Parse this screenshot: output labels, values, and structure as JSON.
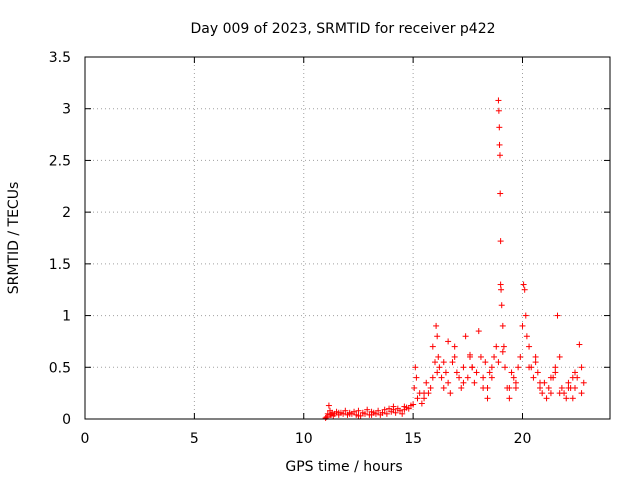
{
  "chart_data": {
    "type": "scatter",
    "title": "Day 009 of 2023, SRMTID for receiver p422",
    "xlabel": "GPS time / hours",
    "ylabel": "SRMTID / TECUs",
    "xlim": [
      0,
      24
    ],
    "ylim": [
      0,
      3.5
    ],
    "xticks": [
      "0",
      "5",
      "10",
      "15",
      "20"
    ],
    "yticks": [
      "0",
      "0.5",
      "1",
      "1.5",
      "2",
      "2.5",
      "3",
      "3.5"
    ],
    "grid": true,
    "marker": "+",
    "color": "#ff0000",
    "series": [
      {
        "name": "SRMTID",
        "x": [
          11.0,
          11.05,
          11.1,
          11.15,
          11.2,
          11.25,
          11.3,
          11.35,
          11.4,
          11.5,
          11.6,
          11.7,
          11.8,
          11.9,
          12.0,
          12.1,
          12.2,
          12.3,
          12.4,
          12.5,
          12.6,
          12.7,
          12.8,
          12.9,
          13.0,
          13.1,
          13.2,
          13.3,
          13.4,
          13.5,
          13.6,
          13.7,
          13.8,
          13.9,
          14.0,
          14.1,
          14.2,
          14.3,
          14.4,
          14.5,
          14.6,
          14.7,
          14.8,
          14.9,
          15.0,
          15.05,
          15.1,
          15.15,
          15.2,
          15.3,
          15.4,
          15.5,
          15.6,
          15.7,
          15.8,
          15.9,
          16.0,
          16.05,
          16.1,
          16.15,
          16.2,
          16.3,
          16.4,
          16.5,
          16.6,
          16.7,
          16.8,
          16.9,
          17.0,
          17.1,
          17.2,
          17.3,
          17.4,
          17.5,
          17.6,
          17.7,
          17.8,
          17.9,
          18.0,
          18.1,
          18.2,
          18.3,
          18.4,
          18.5,
          18.6,
          18.7,
          18.8,
          18.9,
          18.9,
          18.92,
          18.94,
          18.95,
          18.97,
          18.98,
          19.0,
          19.0,
          19.02,
          19.05,
          19.1,
          19.15,
          19.2,
          19.3,
          19.4,
          19.5,
          19.6,
          19.7,
          19.8,
          19.9,
          20.0,
          20.05,
          20.1,
          20.15,
          20.2,
          20.3,
          20.4,
          20.5,
          20.6,
          20.7,
          20.8,
          20.9,
          21.0,
          21.1,
          21.2,
          21.3,
          21.4,
          21.5,
          21.6,
          21.7,
          21.8,
          21.9,
          22.0,
          22.1,
          22.2,
          22.3,
          22.4,
          22.5,
          22.6,
          22.7,
          22.8,
          11.2,
          11.6,
          12.1,
          12.5,
          13.1,
          13.6,
          14.1,
          14.6,
          15.5,
          16.1,
          16.4,
          16.9,
          17.3,
          17.7,
          18.2,
          18.6,
          19.1,
          19.7,
          20.3,
          20.8,
          21.3,
          21.7,
          22.1,
          22.4,
          22.7,
          15.9,
          16.6,
          17.6,
          18.4,
          19.4,
          20.6,
          21.5,
          22.3
        ],
        "y": [
          0.01,
          0.02,
          0.05,
          0.13,
          0.08,
          0.04,
          0.06,
          0.03,
          0.05,
          0.07,
          0.04,
          0.06,
          0.05,
          0.08,
          0.04,
          0.06,
          0.05,
          0.07,
          0.04,
          0.08,
          0.03,
          0.06,
          0.05,
          0.09,
          0.04,
          0.07,
          0.06,
          0.05,
          0.08,
          0.04,
          0.06,
          0.09,
          0.05,
          0.1,
          0.07,
          0.12,
          0.06,
          0.1,
          0.08,
          0.05,
          0.09,
          0.11,
          0.1,
          0.13,
          0.14,
          0.3,
          0.5,
          0.4,
          0.2,
          0.25,
          0.15,
          0.2,
          0.35,
          0.25,
          0.3,
          0.4,
          0.55,
          0.9,
          0.8,
          0.6,
          0.5,
          0.4,
          0.3,
          0.45,
          0.35,
          0.25,
          0.55,
          0.7,
          0.45,
          0.4,
          0.3,
          0.5,
          0.8,
          0.4,
          0.6,
          0.5,
          0.35,
          0.45,
          0.85,
          0.6,
          0.4,
          0.55,
          0.3,
          0.45,
          0.5,
          0.6,
          0.7,
          0.55,
          3.08,
          2.98,
          2.82,
          2.65,
          2.55,
          2.18,
          1.72,
          1.3,
          1.25,
          1.1,
          0.9,
          0.7,
          0.5,
          0.3,
          0.2,
          0.45,
          0.4,
          0.35,
          0.5,
          0.6,
          0.9,
          1.3,
          1.25,
          1.0,
          0.8,
          0.7,
          0.5,
          0.4,
          0.6,
          0.45,
          0.3,
          0.25,
          0.35,
          0.2,
          0.3,
          0.25,
          0.4,
          0.5,
          1.0,
          0.6,
          0.3,
          0.25,
          0.2,
          0.35,
          0.3,
          0.2,
          0.3,
          0.4,
          0.72,
          0.5,
          0.35,
          0.04,
          0.06,
          0.05,
          0.03,
          0.04,
          0.06,
          0.09,
          0.12,
          0.25,
          0.45,
          0.55,
          0.6,
          0.35,
          0.5,
          0.3,
          0.4,
          0.65,
          0.3,
          0.5,
          0.35,
          0.4,
          0.25,
          0.3,
          0.45,
          0.25,
          0.7,
          0.75,
          0.62,
          0.2,
          0.3,
          0.55,
          0.45,
          0.4
        ]
      }
    ]
  }
}
